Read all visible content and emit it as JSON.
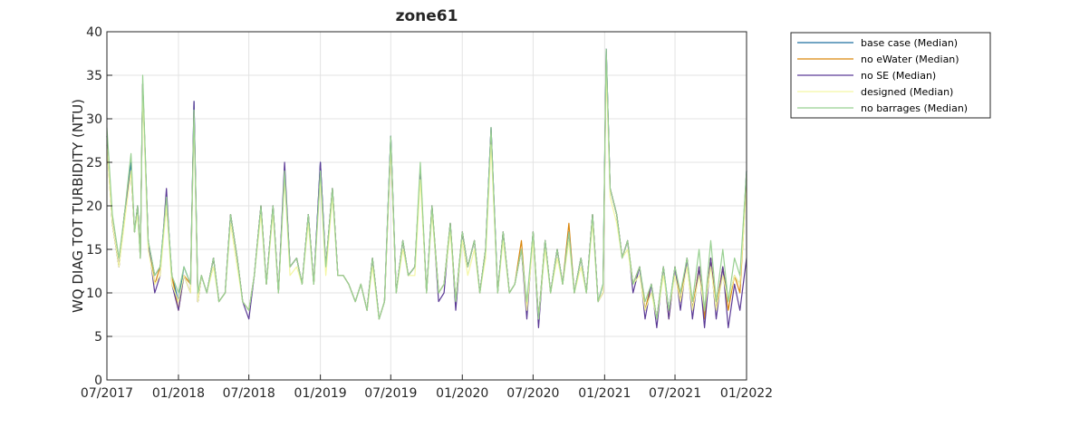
{
  "chart_data": {
    "type": "line",
    "title": "zone61",
    "xlabel": "",
    "ylabel": "WQ DIAG TOT TURBIDITY (NTU)",
    "ylim": [
      0,
      40
    ],
    "yticks": [
      0,
      5,
      10,
      15,
      20,
      25,
      30,
      35,
      40
    ],
    "xlim": [
      "2017-07-01",
      "2022-01-01"
    ],
    "xticks": [
      "07/2017",
      "01/2018",
      "07/2018",
      "01/2019",
      "07/2019",
      "01/2020",
      "07/2020",
      "01/2021",
      "07/2021",
      "01/2022"
    ],
    "grid": true,
    "legend_position": "outside-top-right",
    "x": [
      "2017-07-01",
      "2017-07-15",
      "2017-08-01",
      "2017-08-15",
      "2017-09-01",
      "2017-09-10",
      "2017-09-18",
      "2017-09-25",
      "2017-10-01",
      "2017-10-15",
      "2017-11-01",
      "2017-11-15",
      "2017-12-01",
      "2017-12-15",
      "2018-01-01",
      "2018-01-15",
      "2018-02-01",
      "2018-02-10",
      "2018-02-20",
      "2018-03-01",
      "2018-03-15",
      "2018-04-01",
      "2018-04-15",
      "2018-05-01",
      "2018-05-15",
      "2018-06-01",
      "2018-06-15",
      "2018-07-01",
      "2018-07-15",
      "2018-08-01",
      "2018-08-15",
      "2018-09-01",
      "2018-09-15",
      "2018-10-01",
      "2018-10-15",
      "2018-11-01",
      "2018-11-15",
      "2018-12-01",
      "2018-12-15",
      "2019-01-01",
      "2019-01-15",
      "2019-02-01",
      "2019-02-15",
      "2019-03-01",
      "2019-03-15",
      "2019-04-01",
      "2019-04-15",
      "2019-05-01",
      "2019-05-15",
      "2019-06-01",
      "2019-06-15",
      "2019-07-01",
      "2019-07-15",
      "2019-08-01",
      "2019-08-15",
      "2019-09-01",
      "2019-09-15",
      "2019-10-01",
      "2019-10-15",
      "2019-11-01",
      "2019-11-15",
      "2019-12-01",
      "2019-12-15",
      "2020-01-01",
      "2020-01-15",
      "2020-02-01",
      "2020-02-15",
      "2020-03-01",
      "2020-03-15",
      "2020-04-01",
      "2020-04-15",
      "2020-05-01",
      "2020-05-15",
      "2020-06-01",
      "2020-06-15",
      "2020-07-01",
      "2020-07-15",
      "2020-08-01",
      "2020-08-15",
      "2020-09-01",
      "2020-09-15",
      "2020-10-01",
      "2020-10-15",
      "2020-11-01",
      "2020-11-15",
      "2020-12-01",
      "2020-12-15",
      "2020-12-28",
      "2021-01-05",
      "2021-01-15",
      "2021-02-01",
      "2021-02-15",
      "2021-03-01",
      "2021-03-15",
      "2021-04-01",
      "2021-04-15",
      "2021-05-01",
      "2021-05-15",
      "2021-06-01",
      "2021-06-15",
      "2021-07-01",
      "2021-07-15",
      "2021-08-01",
      "2021-08-15",
      "2021-09-01",
      "2021-09-15",
      "2021-10-01",
      "2021-10-15",
      "2021-11-01",
      "2021-11-15",
      "2021-12-01",
      "2021-12-15",
      "2022-01-01"
    ],
    "series": [
      {
        "name": "base case (Median)",
        "color": "#1f6f9f",
        "values": [
          28,
          18,
          13,
          19,
          25,
          17,
          20,
          14,
          34,
          16,
          12,
          13,
          21,
          12,
          9,
          13,
          11,
          32,
          9,
          12,
          10,
          14,
          9,
          10,
          19,
          14,
          9,
          8,
          12,
          20,
          11,
          20,
          10,
          24,
          13,
          14,
          11,
          19,
          11,
          25,
          13,
          22,
          12,
          12,
          11,
          9,
          11,
          8,
          14,
          7,
          9,
          28,
          10,
          16,
          12,
          13,
          24,
          10,
          20,
          10,
          11,
          18,
          9,
          17,
          13,
          16,
          10,
          15,
          29,
          10,
          17,
          10,
          11,
          15,
          8,
          17,
          7,
          16,
          10,
          15,
          11,
          17,
          10,
          14,
          10,
          19,
          9,
          11,
          38,
          22,
          19,
          14,
          16,
          11,
          13,
          8,
          11,
          7,
          13,
          8,
          13,
          9,
          14,
          8,
          13,
          7,
          14,
          8,
          13,
          9,
          12,
          11,
          24
        ]
      },
      {
        "name": "no eWater (Median)",
        "color": "#d9860c",
        "values": [
          27,
          18,
          13,
          19,
          24,
          17,
          20,
          14,
          34,
          16,
          11,
          13,
          20,
          12,
          8,
          12,
          11,
          31,
          9,
          12,
          10,
          14,
          9,
          10,
          19,
          14,
          9,
          8,
          12,
          20,
          11,
          20,
          10,
          24,
          13,
          14,
          11,
          19,
          11,
          24,
          13,
          22,
          12,
          12,
          11,
          9,
          11,
          8,
          14,
          7,
          9,
          27,
          10,
          16,
          12,
          13,
          24,
          10,
          20,
          10,
          11,
          18,
          9,
          17,
          13,
          16,
          10,
          15,
          28,
          10,
          17,
          10,
          11,
          16,
          8,
          17,
          7,
          16,
          10,
          15,
          11,
          18,
          10,
          14,
          10,
          19,
          9,
          10,
          37,
          22,
          19,
          14,
          16,
          11,
          13,
          8,
          11,
          7,
          13,
          7,
          13,
          9,
          14,
          8,
          13,
          7,
          14,
          8,
          13,
          8,
          12,
          10,
          23
        ]
      },
      {
        "name": "no SE (Median)",
        "color": "#5b3a96",
        "values": [
          28,
          18,
          13,
          19,
          24,
          17,
          20,
          14,
          34,
          16,
          10,
          12,
          22,
          11,
          8,
          12,
          10,
          32,
          9,
          12,
          10,
          14,
          9,
          10,
          19,
          14,
          9,
          7,
          12,
          20,
          11,
          20,
          10,
          25,
          13,
          14,
          11,
          19,
          11,
          25,
          13,
          22,
          12,
          12,
          11,
          9,
          11,
          8,
          14,
          7,
          9,
          28,
          10,
          16,
          12,
          13,
          24,
          10,
          20,
          9,
          10,
          18,
          8,
          17,
          13,
          16,
          10,
          15,
          29,
          10,
          17,
          10,
          11,
          15,
          7,
          17,
          6,
          16,
          10,
          15,
          11,
          17,
          10,
          14,
          10,
          19,
          9,
          10,
          38,
          22,
          19,
          14,
          16,
          10,
          13,
          7,
          11,
          6,
          13,
          7,
          13,
          8,
          14,
          7,
          13,
          6,
          14,
          7,
          13,
          6,
          11,
          8,
          14
        ]
      },
      {
        "name": "designed (Median)",
        "color": "#f4f7a3",
        "values": [
          27,
          18,
          13,
          18,
          24,
          17,
          19,
          14,
          33,
          15,
          11,
          12,
          20,
          11,
          9,
          12,
          10,
          30,
          9,
          12,
          10,
          13,
          9,
          10,
          18,
          13,
          9,
          8,
          12,
          19,
          11,
          19,
          10,
          23,
          12,
          13,
          11,
          18,
          11,
          23,
          12,
          21,
          12,
          12,
          11,
          9,
          11,
          8,
          13,
          7,
          9,
          27,
          10,
          15,
          12,
          12,
          23,
          10,
          19,
          10,
          11,
          17,
          9,
          16,
          12,
          15,
          10,
          14,
          27,
          10,
          16,
          10,
          11,
          15,
          8,
          16,
          7,
          15,
          10,
          14,
          11,
          16,
          10,
          13,
          10,
          18,
          9,
          10,
          36,
          21,
          18,
          14,
          15,
          11,
          12,
          8,
          10,
          7,
          12,
          8,
          12,
          9,
          13,
          8,
          12,
          8,
          13,
          8,
          12,
          9,
          12,
          11,
          22
        ]
      },
      {
        "name": "no barrages (Median)",
        "color": "#98d091",
        "values": [
          29,
          19,
          14,
          19,
          26,
          17,
          20,
          14,
          35,
          16,
          12,
          13,
          21,
          12,
          10,
          13,
          11,
          31,
          10,
          12,
          10,
          14,
          9,
          10,
          19,
          14,
          9,
          8,
          12,
          20,
          11,
          20,
          10,
          24,
          13,
          14,
          11,
          19,
          11,
          24,
          13,
          22,
          12,
          12,
          11,
          9,
          11,
          8,
          14,
          7,
          9,
          28,
          10,
          16,
          12,
          13,
          25,
          10,
          20,
          10,
          11,
          18,
          9,
          17,
          13,
          16,
          10,
          15,
          29,
          10,
          17,
          10,
          11,
          15,
          9,
          17,
          7,
          16,
          10,
          15,
          11,
          17,
          10,
          14,
          10,
          19,
          9,
          11,
          38,
          22,
          19,
          14,
          16,
          11,
          13,
          9,
          11,
          7,
          13,
          8,
          13,
          10,
          14,
          9,
          15,
          8,
          16,
          9,
          15,
          9,
          14,
          12,
          24
        ]
      }
    ]
  }
}
